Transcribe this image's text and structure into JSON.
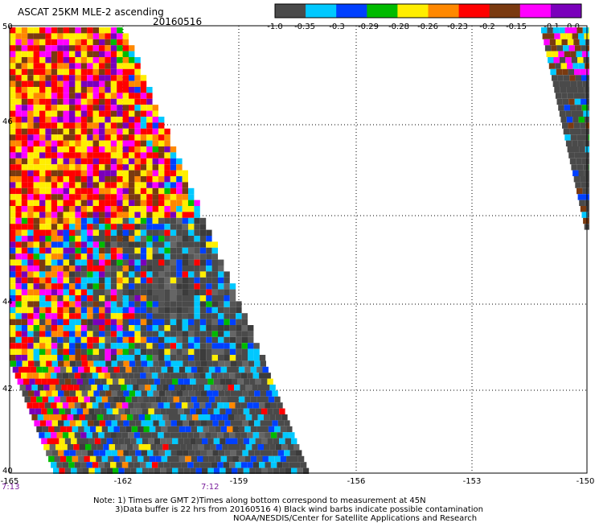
{
  "header": {
    "title": "ASCAT 25KM MLE-2 ascending",
    "date": "20160516"
  },
  "colorbar": {
    "colors": [
      "#4a4a4a",
      "#00c8ff",
      "#0040ff",
      "#00bb00",
      "#ffee00",
      "#ff8800",
      "#ff0000",
      "#7a3a10",
      "#ff00ff",
      "#7a00bb"
    ],
    "labels": [
      "-1.0",
      "-0.35",
      "-0.3",
      "-0.29",
      "-0.28",
      "-0.26",
      "-0.23",
      "-0.2",
      "-0.15",
      "-0.1",
      "0.0"
    ]
  },
  "axes": {
    "lat_labels": [
      "50",
      "46",
      "44",
      "42",
      "40"
    ],
    "lon_labels": [
      "-165",
      "-162",
      "-159",
      "-156",
      "-153",
      "-150"
    ],
    "time_labels": [
      "7:13",
      "7:12"
    ]
  },
  "notes": [
    "Note: 1) Times are GMT 2)Times along bottom correspond to measurement at 45N",
    "3)Data buffer is 22 hrs from 20160516 4) Black wind barbs indicate possible contamination",
    "NOAA/NESDIS/Center for Satellite Applications and Research"
  ]
}
